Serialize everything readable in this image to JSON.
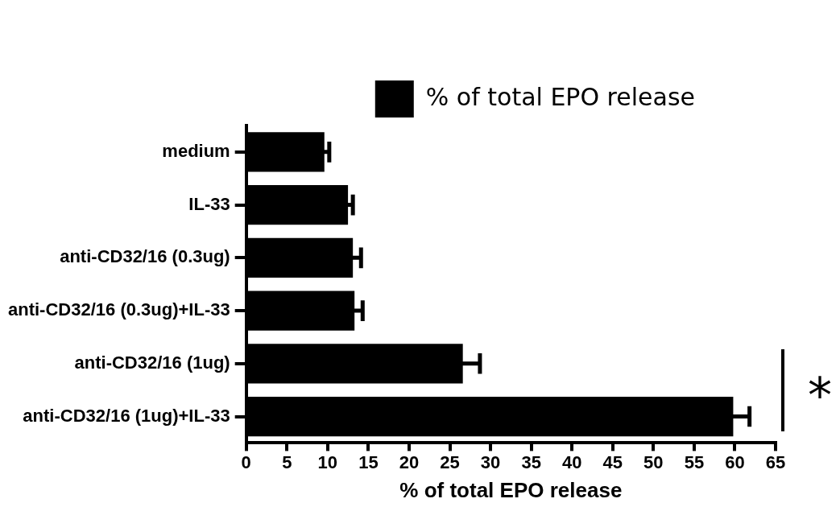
{
  "chart_data": {
    "type": "bar",
    "orientation": "horizontal",
    "xlabel": "% of total EPO release",
    "categories": [
      "medium",
      "IL-33",
      "anti-CD32/16 (0.3ug)",
      "anti-CD32/16 (0.3ug)+IL-33",
      "anti-CD32/16 (1ug)",
      "anti-CD32/16 (1ug)+IL-33"
    ],
    "series": [
      {
        "name": "% of total EPO release",
        "color": "#000000",
        "values": [
          9.6,
          12.5,
          13.1,
          13.3,
          26.6,
          59.8
        ],
        "errors": [
          0.6,
          0.6,
          1.0,
          1.0,
          2.1,
          2.0
        ]
      }
    ],
    "xlim": [
      0,
      65
    ],
    "xticks": [
      0,
      5,
      10,
      15,
      20,
      25,
      30,
      35,
      40,
      45,
      50,
      55,
      60,
      65
    ],
    "grid": false,
    "legend": "top right",
    "annotations": [
      "*"
    ]
  }
}
